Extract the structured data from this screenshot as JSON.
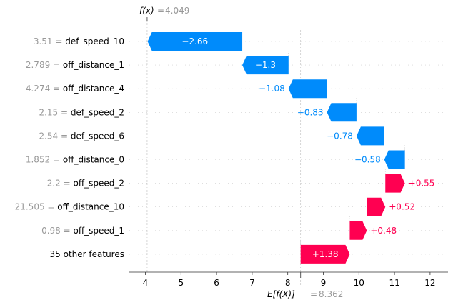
{
  "chart_data": {
    "type": "waterfall",
    "fx_label": "f(x)",
    "fx_value": "4.049",
    "fx": 4.049,
    "base_label": "E[f(X)]",
    "base_value": "8.362",
    "base": 8.362,
    "xlim": [
      3.55,
      12.5
    ],
    "xticks": [
      4,
      5,
      6,
      7,
      8,
      9,
      10,
      11,
      12
    ],
    "colors": {
      "positive": "#ff0051",
      "negative": "#008bfb",
      "gray": "#999999"
    },
    "rows": [
      {
        "value_text": "3.51",
        "feature": "def_speed_10",
        "shap": -2.66,
        "label": "−2.66"
      },
      {
        "value_text": "2.789",
        "feature": "off_distance_1",
        "shap": -1.3,
        "label": "−1.3"
      },
      {
        "value_text": "4.274",
        "feature": "off_distance_4",
        "shap": -1.08,
        "label": "−1.08"
      },
      {
        "value_text": "2.15",
        "feature": "def_speed_2",
        "shap": -0.83,
        "label": "−0.83"
      },
      {
        "value_text": "2.54",
        "feature": "def_speed_6",
        "shap": -0.78,
        "label": "−0.78"
      },
      {
        "value_text": "1.852",
        "feature": "off_distance_0",
        "shap": -0.58,
        "label": "−0.58"
      },
      {
        "value_text": "2.2",
        "feature": "off_speed_2",
        "shap": 0.55,
        "label": "+0.55"
      },
      {
        "value_text": "21.505",
        "feature": "off_distance_10",
        "shap": 0.52,
        "label": "+0.52"
      },
      {
        "value_text": "0.98",
        "feature": "off_speed_1",
        "shap": 0.48,
        "label": "+0.48"
      },
      {
        "value_text": "",
        "feature": "35 other features",
        "shap": 1.38,
        "label": "+1.38"
      }
    ]
  }
}
